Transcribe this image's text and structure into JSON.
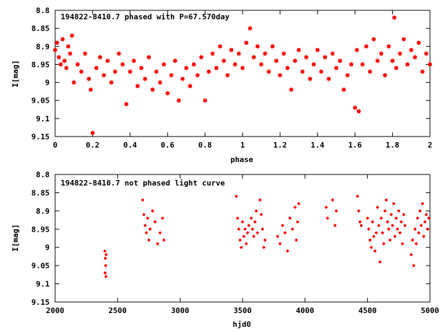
{
  "chart_data": [
    {
      "type": "scatter",
      "title": "194822-8410.7 phased with P=67.570day",
      "xlabel": "phase",
      "ylabel": "I[mag]",
      "xlim": [
        0,
        2
      ],
      "ylim": [
        9.15,
        8.8
      ],
      "y_reversed": true,
      "grid": false,
      "marker": "asterisk",
      "color": "#ff0000",
      "x_ticks": [
        0,
        0.2,
        0.4,
        0.6,
        0.8,
        1,
        1.2,
        1.4,
        1.6,
        1.8,
        2
      ],
      "y_ticks": [
        8.8,
        8.85,
        8.9,
        8.95,
        9,
        9.05,
        9.1,
        9.15
      ],
      "x_tick_labels": [
        "0",
        "0.2",
        "0.4",
        "0.6",
        "0.8",
        "1",
        "1.2",
        "1.4",
        "1.6",
        "1.8",
        "2"
      ],
      "y_tick_labels": [
        "8.8",
        "8.85",
        "8.9",
        "8.95",
        "9",
        "9.05",
        "9.1",
        "9.15"
      ],
      "x": [
        0.0,
        0.01,
        0.02,
        0.03,
        0.04,
        0.05,
        0.06,
        0.07,
        0.08,
        0.09,
        0.1,
        0.12,
        0.14,
        0.16,
        0.18,
        0.19,
        0.2,
        0.22,
        0.24,
        0.26,
        0.28,
        0.3,
        0.32,
        0.34,
        0.36,
        0.38,
        0.4,
        0.42,
        0.44,
        0.46,
        0.48,
        0.5,
        0.52,
        0.54,
        0.56,
        0.58,
        0.6,
        0.62,
        0.64,
        0.66,
        0.68,
        0.7,
        0.72,
        0.74,
        0.76,
        0.78,
        0.8,
        0.82,
        0.84,
        0.86,
        0.88,
        0.9,
        0.92,
        0.94,
        0.96,
        0.98,
        1.0,
        1.02,
        1.04,
        1.06,
        1.08,
        1.1,
        1.12,
        1.14,
        1.16,
        1.18,
        1.2,
        1.22,
        1.24,
        1.26,
        1.28,
        1.3,
        1.32,
        1.34,
        1.36,
        1.38,
        1.4,
        1.42,
        1.44,
        1.46,
        1.48,
        1.5,
        1.52,
        1.54,
        1.56,
        1.58,
        1.6,
        1.61,
        1.62,
        1.64,
        1.66,
        1.68,
        1.7,
        1.72,
        1.74,
        1.76,
        1.78,
        1.8,
        1.81,
        1.82,
        1.84,
        1.86,
        1.88,
        1.9,
        1.92,
        1.94,
        1.96,
        1.98,
        2.0
      ],
      "y": [
        8.91,
        8.89,
        8.93,
        8.95,
        8.88,
        8.94,
        8.96,
        8.9,
        8.92,
        8.87,
        9.0,
        8.95,
        8.97,
        8.92,
        8.99,
        9.02,
        9.14,
        8.96,
        8.93,
        8.98,
        8.94,
        9.0,
        8.97,
        8.92,
        8.95,
        9.06,
        8.97,
        8.94,
        9.01,
        8.96,
        8.99,
        8.93,
        9.02,
        8.97,
        9.0,
        8.95,
        9.03,
        8.98,
        8.94,
        9.05,
        8.99,
        8.96,
        9.01,
        8.95,
        8.98,
        8.93,
        9.05,
        8.97,
        8.92,
        8.96,
        8.9,
        8.94,
        8.98,
        8.91,
        8.95,
        8.92,
        8.96,
        8.89,
        8.85,
        8.93,
        8.9,
        8.95,
        8.92,
        8.97,
        8.9,
        8.94,
        8.98,
        8.92,
        8.96,
        9.02,
        8.94,
        8.91,
        8.97,
        8.93,
        8.99,
        8.95,
        8.91,
        8.97,
        8.93,
        8.99,
        8.92,
        8.96,
        8.94,
        9.02,
        8.98,
        8.95,
        9.07,
        8.91,
        9.08,
        8.95,
        8.9,
        8.97,
        8.88,
        8.94,
        8.92,
        8.98,
        8.9,
        8.94,
        8.82,
        8.96,
        8.92,
        8.88,
        8.95,
        8.91,
        8.93,
        8.89,
        8.97,
        8.92,
        8.95
      ]
    },
    {
      "type": "scatter",
      "title": "194822-8410.7 not phased light curve",
      "xlabel": "hjd0",
      "ylabel": "I[mag]",
      "xlim": [
        2000,
        5000
      ],
      "ylim": [
        9.15,
        8.8
      ],
      "y_reversed": true,
      "grid": false,
      "marker": "diamond",
      "color": "#ff0000",
      "x_ticks": [
        2000,
        2500,
        3000,
        3500,
        4000,
        4500,
        5000
      ],
      "y_ticks": [
        8.8,
        8.85,
        8.9,
        8.95,
        9,
        9.05,
        9.1,
        9.15
      ],
      "x_tick_labels": [
        "2000",
        "2500",
        "3000",
        "3500",
        "4000",
        "4500",
        "5000"
      ],
      "y_tick_labels": [
        "8.8",
        "8.85",
        "8.9",
        "8.95",
        "9",
        "9.05",
        "9.1",
        "9.15"
      ],
      "x": [
        2398,
        2400,
        2402,
        2404,
        2406,
        2408,
        2700,
        2710,
        2720,
        2730,
        2740,
        2750,
        2760,
        2780,
        2800,
        2820,
        2840,
        2860,
        2870,
        3450,
        3460,
        3470,
        3480,
        3490,
        3500,
        3510,
        3520,
        3530,
        3540,
        3550,
        3570,
        3580,
        3590,
        3600,
        3610,
        3620,
        3640,
        3650,
        3660,
        3670,
        3680,
        3780,
        3800,
        3820,
        3840,
        3860,
        3880,
        3900,
        3920,
        3930,
        3940,
        3950,
        4170,
        4180,
        4220,
        4240,
        4250,
        4420,
        4430,
        4440,
        4450,
        4500,
        4510,
        4520,
        4530,
        4540,
        4550,
        4560,
        4570,
        4580,
        4590,
        4600,
        4610,
        4620,
        4630,
        4640,
        4650,
        4660,
        4670,
        4680,
        4690,
        4700,
        4710,
        4720,
        4730,
        4740,
        4750,
        4760,
        4770,
        4780,
        4790,
        4800,
        4850,
        4860,
        4870,
        4880,
        4890,
        4900,
        4910,
        4920,
        4930,
        4940,
        4950,
        4960,
        4970,
        4980,
        4990
      ],
      "y": [
        9.01,
        9.07,
        9.03,
        9.05,
        9.08,
        9.02,
        8.87,
        8.91,
        8.94,
        8.96,
        8.92,
        8.98,
        8.95,
        8.9,
        8.93,
        8.99,
        8.96,
        8.92,
        8.98,
        8.86,
        8.92,
        8.95,
        8.98,
        9.0,
        8.93,
        8.97,
        8.95,
        8.99,
        8.96,
        8.94,
        8.92,
        8.95,
        8.97,
        8.93,
        8.9,
        8.96,
        8.87,
        8.91,
        8.95,
        9.0,
        8.98,
        8.97,
        8.99,
        8.94,
        8.96,
        9.01,
        8.92,
        8.95,
        8.89,
        8.98,
        8.93,
        8.88,
        8.89,
        8.92,
        8.87,
        8.94,
        8.9,
        8.86,
        8.9,
        8.93,
        8.94,
        8.92,
        8.95,
        8.98,
        9.0,
        8.93,
        8.97,
        9.01,
        8.96,
        8.89,
        8.94,
        9.04,
        8.92,
        8.96,
        8.99,
        8.9,
        8.87,
        8.93,
        8.95,
        8.98,
        8.91,
        8.94,
        8.88,
        8.97,
        8.92,
        8.95,
        8.9,
        8.96,
        8.93,
        8.99,
        8.91,
        8.94,
        9.02,
        8.98,
        9.05,
        8.95,
        8.99,
        8.92,
        8.96,
        8.9,
        8.94,
        8.88,
        8.97,
        8.93,
        8.91,
        8.95,
        8.92
      ]
    }
  ]
}
